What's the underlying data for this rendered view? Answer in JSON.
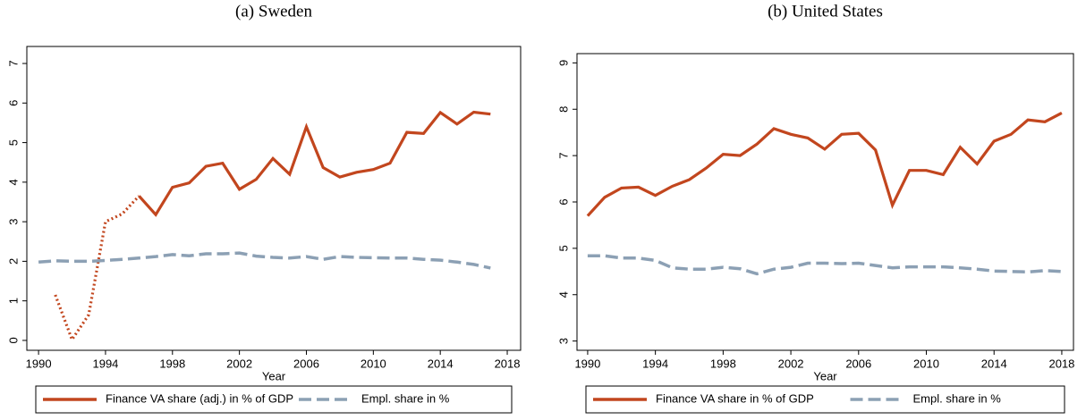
{
  "chart_data": [
    {
      "type": "line",
      "title": "(a) Sweden",
      "x_label": "Year",
      "x": [
        1990,
        1991,
        1992,
        1993,
        1994,
        1995,
        1996,
        1997,
        1998,
        1999,
        2000,
        2001,
        2002,
        2003,
        2004,
        2005,
        2006,
        2007,
        2008,
        2009,
        2010,
        2011,
        2012,
        2013,
        2014,
        2015,
        2016,
        2017
      ],
      "series": [
        {
          "name": "Finance VA share (adj.) in % of GDP",
          "color": "#c2461e",
          "dash": "solid",
          "dotted_until": 1996,
          "values": [
            null,
            1.15,
            0.02,
            0.65,
            3.0,
            3.2,
            3.65,
            3.18,
            3.87,
            3.98,
            4.4,
            4.48,
            3.82,
            4.07,
            4.6,
            4.2,
            5.4,
            4.37,
            4.13,
            4.25,
            4.32,
            4.48,
            5.26,
            5.23,
            5.76,
            5.47,
            5.77,
            5.72
          ]
        },
        {
          "name": "Empl. share in %",
          "color": "#8ca0b4",
          "dash": "dashed",
          "values": [
            1.98,
            2.01,
            2.0,
            2.0,
            2.02,
            2.05,
            2.08,
            2.12,
            2.17,
            2.14,
            2.19,
            2.19,
            2.21,
            2.13,
            2.1,
            2.08,
            2.12,
            2.05,
            2.12,
            2.1,
            2.09,
            2.08,
            2.08,
            2.05,
            2.03,
            1.98,
            1.92,
            1.83
          ]
        }
      ],
      "xlim": [
        1989.3,
        2018.8
      ],
      "xticks": [
        1990,
        1994,
        1998,
        2002,
        2006,
        2010,
        2014,
        2018
      ],
      "ylim": [
        -0.25,
        7.43
      ],
      "yticks": [
        0,
        1,
        2,
        3,
        4,
        5,
        6,
        7
      ]
    },
    {
      "type": "line",
      "title": "(b) United States",
      "x_label": "Year",
      "x": [
        1990,
        1991,
        1992,
        1993,
        1994,
        1995,
        1996,
        1997,
        1998,
        1999,
        2000,
        2001,
        2002,
        2003,
        2004,
        2005,
        2006,
        2007,
        2008,
        2009,
        2010,
        2011,
        2012,
        2013,
        2014,
        2015,
        2016,
        2017,
        2018
      ],
      "series": [
        {
          "name": "Finance VA share in % of GDP",
          "color": "#c2461e",
          "dash": "solid",
          "values": [
            5.7,
            6.1,
            6.3,
            6.32,
            6.14,
            6.34,
            6.48,
            6.73,
            7.03,
            7.0,
            7.25,
            7.58,
            7.46,
            7.38,
            7.14,
            7.46,
            7.48,
            7.12,
            5.93,
            6.68,
            6.68,
            6.59,
            7.18,
            6.82,
            7.31,
            7.46,
            7.77,
            7.73,
            7.92
          ]
        },
        {
          "name": "Empl. share in %",
          "color": "#8ca0b4",
          "dash": "dashed",
          "values": [
            4.84,
            4.84,
            4.79,
            4.79,
            4.74,
            4.58,
            4.55,
            4.55,
            4.59,
            4.56,
            4.45,
            4.55,
            4.59,
            4.68,
            4.68,
            4.67,
            4.68,
            4.63,
            4.58,
            4.6,
            4.6,
            4.6,
            4.58,
            4.55,
            4.51,
            4.5,
            4.49,
            4.52,
            4.5
          ]
        }
      ],
      "xlim": [
        1989.37,
        2018.69
      ],
      "xticks": [
        1990,
        1994,
        1998,
        2002,
        2006,
        2010,
        2014,
        2018
      ],
      "ylim": [
        2.8,
        9.2
      ],
      "yticks": [
        3,
        4,
        5,
        6,
        7,
        8,
        9
      ]
    }
  ]
}
